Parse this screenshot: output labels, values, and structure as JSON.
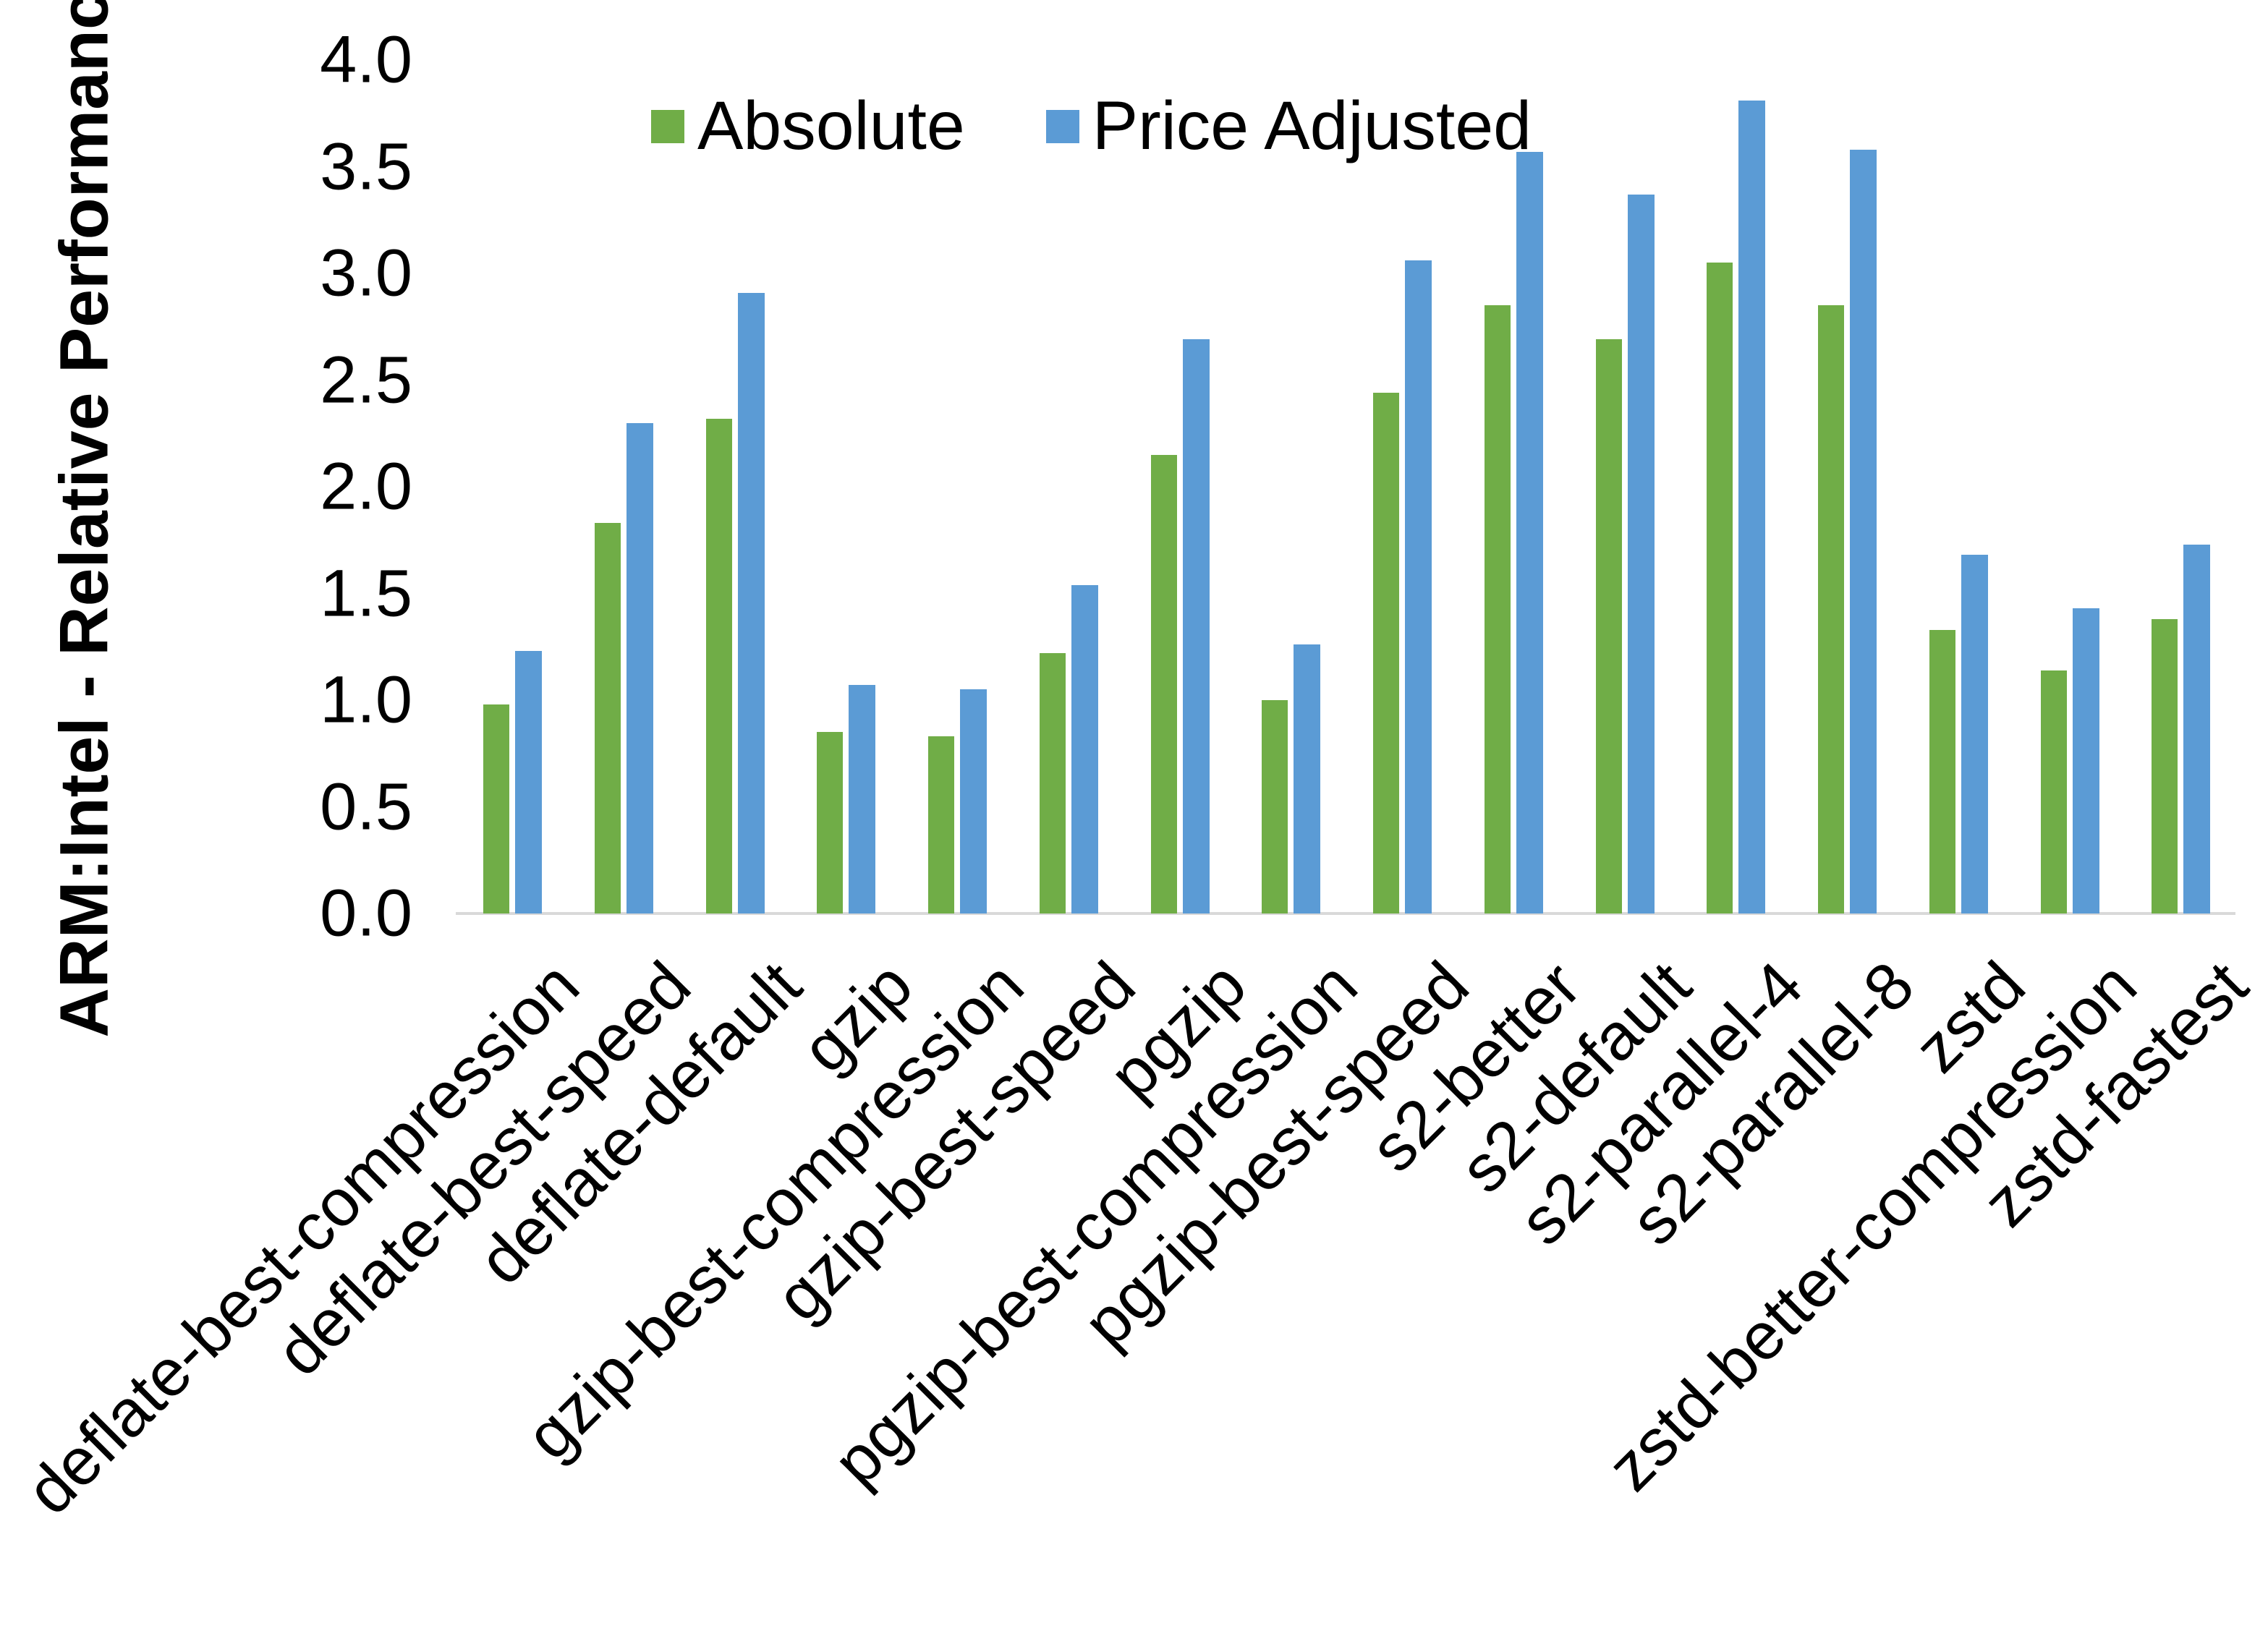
{
  "y_axis": {
    "title": "ARM:Intel - Relative Performance",
    "tick_labels": [
      "0.0",
      "0.5",
      "1.0",
      "1.5",
      "2.0",
      "2.5",
      "3.0",
      "3.5",
      "4.0"
    ],
    "min": 0,
    "max": 4
  },
  "legend": {
    "items": [
      {
        "label": "Absolute",
        "color": "#70AD47"
      },
      {
        "label": "Price Adjusted",
        "color": "#5B9BD5"
      }
    ]
  },
  "colors": {
    "absolute": "#70AD47",
    "price_adjusted": "#5B9BD5",
    "axis_line": "#d9d9d9",
    "text": "#000000",
    "bottom_edge_bar": "#000000",
    "background": "#ffffff"
  },
  "chart_data": {
    "type": "bar",
    "title": "",
    "xlabel": "",
    "ylabel": "ARM:Intel - Relative Performance",
    "ylim": [
      0,
      4
    ],
    "grid": false,
    "legend_position": "top",
    "categories": [
      "deflate-best-compression",
      "deflate-best-speed",
      "deflate-default",
      "gzip",
      "gzip-best-compression",
      "gzip-best-speed",
      "pgzip",
      "pgzip-best-compression",
      "pgzip-best-speed",
      "s2-better",
      "s2-default",
      "s2-parallel-4",
      "s2-parallel-8",
      "zstd",
      "zstd-better-compression",
      "zstd-fastest"
    ],
    "series": [
      {
        "name": "Absolute",
        "color": "#70AD47",
        "values": [
          0.98,
          1.83,
          2.32,
          0.85,
          0.83,
          1.22,
          2.15,
          1.0,
          2.44,
          2.85,
          2.69,
          3.05,
          2.85,
          1.33,
          1.14,
          1.38
        ]
      },
      {
        "name": "Price Adjusted",
        "color": "#5B9BD5",
        "values": [
          1.23,
          2.3,
          2.91,
          1.07,
          1.05,
          1.54,
          2.69,
          1.26,
          3.06,
          3.57,
          3.37,
          3.81,
          3.58,
          1.68,
          1.43,
          1.73
        ]
      }
    ]
  }
}
